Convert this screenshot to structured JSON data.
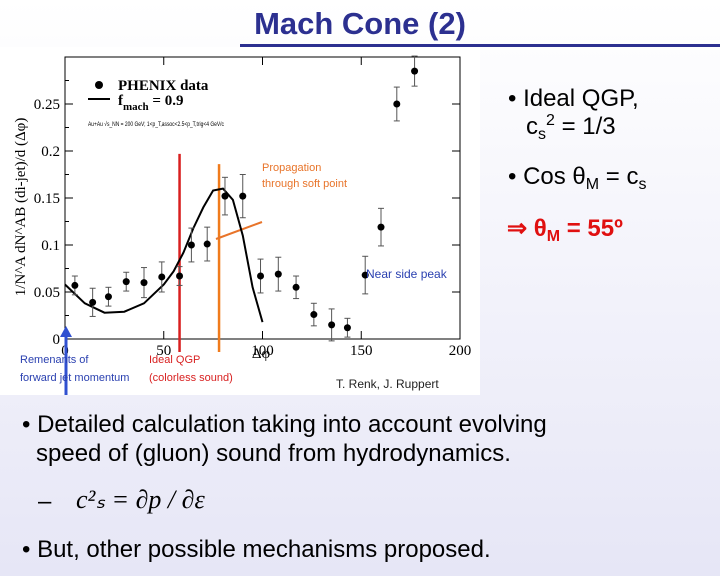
{
  "slide": {
    "title": "Mach Cone (2)",
    "bullets_right": {
      "b1_line1": "• Ideal QGP,",
      "b1_c": "c",
      "b1_sub": "s",
      "b1_sup": "2",
      "b1_rest": " = 1/3",
      "b2_text": "• Cos θ",
      "b2_sub": "M",
      "b2_mid": " = c",
      "b2_sub2": "s",
      "b3_arrow": "⇒ θ",
      "b3_sub": "M",
      "b3_rest": " = 55º"
    },
    "bullets_bottom": {
      "b4_line1": "• Detailed calculation taking into account evolving",
      "b4_line2": "speed of (gluon) sound from hydrodynamics.",
      "b5_dash": "–",
      "b5_formula": "c²ₛ = ∂p / ∂ε",
      "b6": "• But, other possible mechanisms proposed."
    }
  },
  "chart_data": {
    "type": "scatter",
    "ylabel": "1/N^A dN^AB (di-jet)/d (Δφ)",
    "xlabel": "Δφ",
    "xlim": [
      0,
      200
    ],
    "ylim": [
      0,
      0.3
    ],
    "x_ticks": [
      "0",
      "50",
      "100",
      "150",
      "200"
    ],
    "y_ticks": [
      "0",
      "0.05",
      "0.1",
      "0.15",
      "0.2",
      "0.25"
    ],
    "legend": {
      "data_label": "PHENIX data",
      "fit_label_main": "f",
      "fit_label_sub": "mach",
      "fit_label_rest": " = 0.9",
      "cond": "Au+Au √s_NN = 200 GeV; 1<p_T,assoc<2.5<p_T,trig<4 GeV/c"
    },
    "series": [
      {
        "name": "PHENIX data",
        "x": [
          5,
          14,
          22,
          31,
          40,
          49,
          58,
          64,
          72,
          81,
          90,
          99,
          108,
          117,
          126,
          135,
          143,
          152,
          160,
          168,
          177
        ],
        "y": [
          0.057,
          0.039,
          0.045,
          0.061,
          0.06,
          0.066,
          0.067,
          0.1,
          0.101,
          0.152,
          0.152,
          0.067,
          0.069,
          0.055,
          0.026,
          0.015,
          0.012,
          0.068,
          0.119,
          0.25,
          0.285
        ],
        "err": [
          0.01,
          0.015,
          0.01,
          0.01,
          0.016,
          0.016,
          0.01,
          0.018,
          0.018,
          0.02,
          0.023,
          0.018,
          0.018,
          0.012,
          0.012,
          0.017,
          0.01,
          0.02,
          0.02,
          0.018,
          0.016
        ]
      },
      {
        "name": "f_mach = 0.9",
        "x": [
          0,
          10,
          20,
          30,
          40,
          50,
          55,
          60,
          65,
          70,
          75,
          80,
          85,
          90,
          95,
          100
        ],
        "y": [
          0.058,
          0.038,
          0.028,
          0.029,
          0.038,
          0.058,
          0.072,
          0.092,
          0.118,
          0.14,
          0.158,
          0.16,
          0.148,
          0.11,
          0.055,
          0.018
        ]
      }
    ],
    "annotations": {
      "propagation_l1": "Propagation",
      "propagation_l2": "through soft point",
      "near_side": "Near side peak",
      "remnants_l1": "Remenants of",
      "remnants_l2": "forward jet momentum",
      "ideal_l1": "Ideal QGP",
      "ideal_l2": "(colorless sound)",
      "credit": "T. Renk, J. Ruppert"
    },
    "colors": {
      "red_line": "#d81f1f",
      "orange_line": "#f07b1c",
      "blue_arrow": "#3050d0",
      "annotation_orange": "#e8742a",
      "annotation_blue": "#2a40b0",
      "annotation_red": "#d81f1f"
    }
  }
}
